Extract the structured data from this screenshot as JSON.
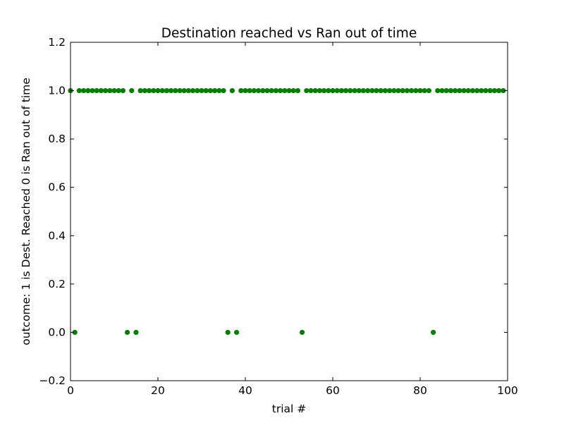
{
  "chart_data": {
    "type": "scatter",
    "title": "Destination reached vs Ran out of time",
    "xlabel": "trial #",
    "ylabel": "outcome: 1 is Dest. Reached 0 is Ran out of time",
    "xlim": [
      0,
      100
    ],
    "ylim": [
      -0.2,
      1.2
    ],
    "xticks": [
      0,
      20,
      40,
      60,
      80,
      100
    ],
    "xtick_labels": [
      "0",
      "20",
      "40",
      "60",
      "80",
      "100"
    ],
    "yticks": [
      -0.2,
      0.0,
      0.2,
      0.4,
      0.6,
      0.8,
      1.0,
      1.2
    ],
    "ytick_labels": [
      "−0.2",
      "0.0",
      "0.2",
      "0.4",
      "0.6",
      "0.8",
      "1.0",
      "1.2"
    ],
    "grid": false,
    "marker_color": "#007f00",
    "x": [
      0,
      1,
      2,
      3,
      4,
      5,
      6,
      7,
      8,
      9,
      10,
      11,
      12,
      13,
      14,
      15,
      16,
      17,
      18,
      19,
      20,
      21,
      22,
      23,
      24,
      25,
      26,
      27,
      28,
      29,
      30,
      31,
      32,
      33,
      34,
      35,
      36,
      37,
      38,
      39,
      40,
      41,
      42,
      43,
      44,
      45,
      46,
      47,
      48,
      49,
      50,
      51,
      52,
      53,
      54,
      55,
      56,
      57,
      58,
      59,
      60,
      61,
      62,
      63,
      64,
      65,
      66,
      67,
      68,
      69,
      70,
      71,
      72,
      73,
      74,
      75,
      76,
      77,
      78,
      79,
      80,
      81,
      82,
      83,
      84,
      85,
      86,
      87,
      88,
      89,
      90,
      91,
      92,
      93,
      94,
      95,
      96,
      97,
      98,
      99
    ],
    "y": [
      1,
      0,
      1,
      1,
      1,
      1,
      1,
      1,
      1,
      1,
      1,
      1,
      1,
      0,
      1,
      0,
      1,
      1,
      1,
      1,
      1,
      1,
      1,
      1,
      1,
      1,
      1,
      1,
      1,
      1,
      1,
      1,
      1,
      1,
      1,
      1,
      0,
      1,
      0,
      1,
      1,
      1,
      1,
      1,
      1,
      1,
      1,
      1,
      1,
      1,
      1,
      1,
      1,
      0,
      1,
      1,
      1,
      1,
      1,
      1,
      1,
      1,
      1,
      1,
      1,
      1,
      1,
      1,
      1,
      1,
      1,
      1,
      1,
      1,
      1,
      1,
      1,
      1,
      1,
      1,
      1,
      1,
      1,
      0,
      1,
      1,
      1,
      1,
      1,
      1,
      1,
      1,
      1,
      1,
      1,
      1,
      1,
      1,
      1,
      1
    ]
  }
}
